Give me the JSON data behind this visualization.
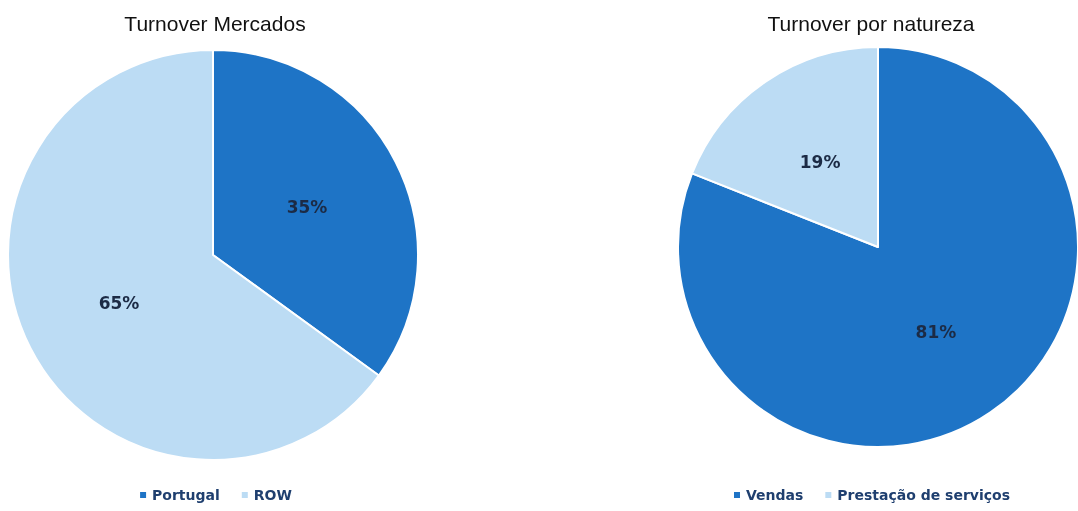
{
  "chart_data": [
    {
      "type": "pie",
      "title": "Turnover Mercados",
      "categories": [
        "Portugal",
        "ROW"
      ],
      "values": [
        35,
        65
      ],
      "value_labels": [
        "35%",
        "65%"
      ],
      "colors": [
        "#1e74c6",
        "#bcdcf4"
      ],
      "legend": "bottom"
    },
    {
      "type": "pie",
      "title": "Turnover por natureza",
      "categories": [
        "Vendas",
        "Prestação de serviços"
      ],
      "values": [
        81,
        19
      ],
      "value_labels": [
        "81%",
        "19%"
      ],
      "colors": [
        "#1e74c6",
        "#bcdcf4"
      ],
      "legend": "bottom"
    }
  ]
}
